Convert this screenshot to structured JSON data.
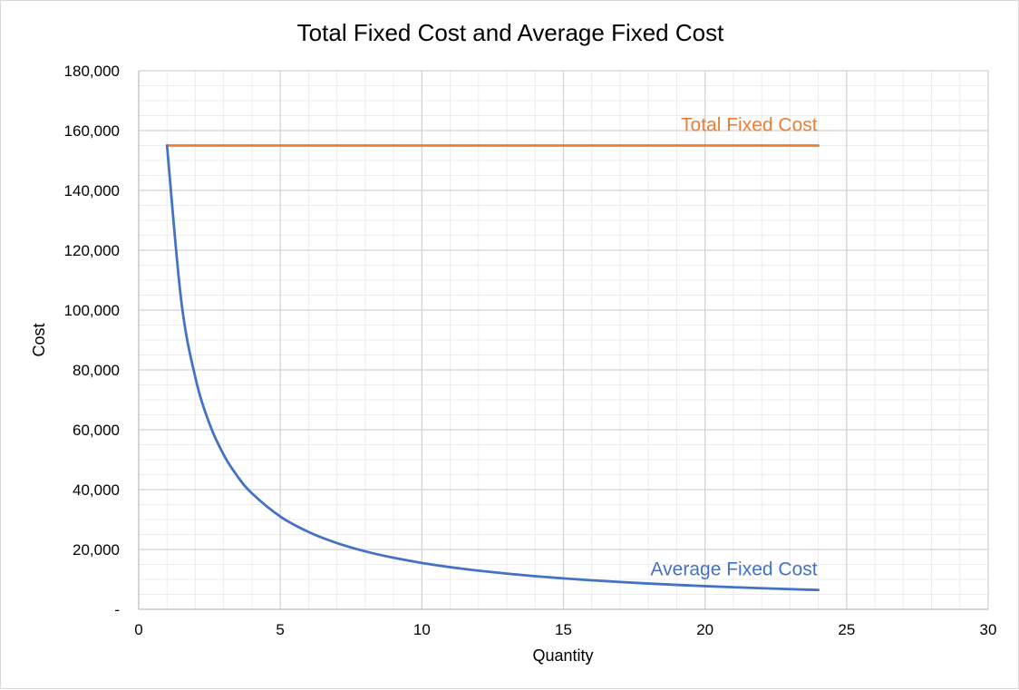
{
  "chart_data": {
    "type": "scatter",
    "title": "Total Fixed Cost and Average Fixed Cost",
    "xlabel": "Quantity",
    "ylabel": "Cost",
    "xlim": [
      0,
      30
    ],
    "ylim": [
      0,
      180000
    ],
    "x_ticks": [
      "0",
      "5",
      "10",
      "15",
      "20",
      "25",
      "30"
    ],
    "y_ticks": [
      "-",
      "20,000",
      "40,000",
      "60,000",
      "80,000",
      "100,000",
      "120,000",
      "140,000",
      "160,000",
      "180,000"
    ],
    "grid": true,
    "series": [
      {
        "name": "Total Fixed Cost",
        "color": "#ED7D31",
        "label_placement": "above-line-end",
        "x": [
          1,
          2,
          3,
          4,
          5,
          6,
          7,
          8,
          9,
          10,
          11,
          12,
          13,
          14,
          15,
          16,
          17,
          18,
          19,
          20,
          21,
          22,
          23,
          24
        ],
        "y": [
          155000,
          155000,
          155000,
          155000,
          155000,
          155000,
          155000,
          155000,
          155000,
          155000,
          155000,
          155000,
          155000,
          155000,
          155000,
          155000,
          155000,
          155000,
          155000,
          155000,
          155000,
          155000,
          155000,
          155000
        ]
      },
      {
        "name": "Average Fixed Cost",
        "color": "#4472C4",
        "label_placement": "above-line-end",
        "x": [
          1,
          1.5,
          2,
          2.5,
          3,
          3.5,
          4,
          5,
          6,
          7,
          8,
          9,
          10,
          11,
          12,
          13,
          14,
          15,
          16,
          17,
          18,
          19,
          20,
          21,
          22,
          23,
          24
        ],
        "y": [
          155000,
          103333,
          77500,
          62000,
          51667,
          44286,
          38750,
          31000,
          25833,
          22143,
          19375,
          17222,
          15500,
          14091,
          12917,
          11923,
          11071,
          10333,
          9688,
          9118,
          8611,
          8158,
          7750,
          7381,
          7045,
          6739,
          6458
        ]
      }
    ]
  }
}
